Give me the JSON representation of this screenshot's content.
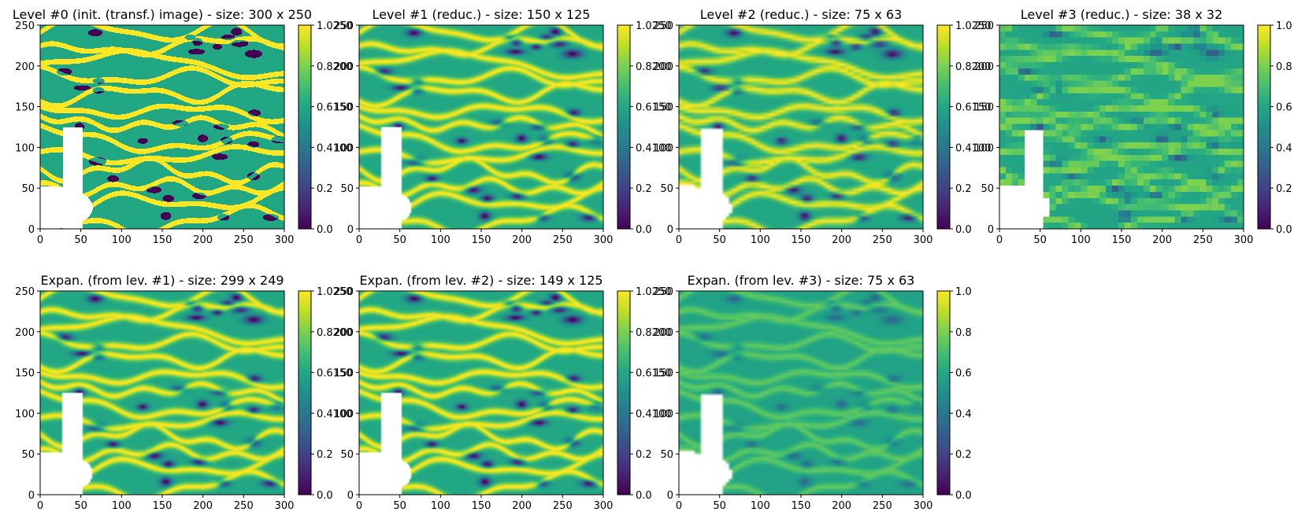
{
  "chart_data": [
    {
      "type": "heatmap",
      "title": "Level #0 (init. (transf.) image) - size: 300 x 250",
      "grid_size": [
        300,
        250
      ],
      "xlim": [
        0,
        300
      ],
      "ylim": [
        0,
        250
      ],
      "x_ticks": [
        "0",
        "50",
        "100",
        "150",
        "200",
        "250",
        "300"
      ],
      "y_ticks": [
        "0",
        "50",
        "100",
        "150",
        "200",
        "250"
      ],
      "colorbar": {
        "min": 0.0,
        "max": 1.025,
        "ticks": [
          "0.0",
          "0.2",
          "0.4100",
          "0.6150",
          "0.8200",
          "1.0250"
        ]
      },
      "smoothing": "sharp",
      "cell": 1
    },
    {
      "type": "heatmap",
      "title": "Level #1 (reduc.) - size: 150 x 125",
      "grid_size": [
        150,
        125
      ],
      "xlim": [
        0,
        300
      ],
      "ylim": [
        0,
        250
      ],
      "x_ticks": [
        "0",
        "50",
        "100",
        "150",
        "200",
        "250",
        "300"
      ],
      "y_ticks": [
        "0",
        "50",
        "100",
        "150",
        "200",
        "250"
      ],
      "colorbar": {
        "min": 0.0,
        "max": 1.025,
        "ticks": [
          "0.0",
          "0.2",
          "0.4100",
          "0.6150",
          "0.8200",
          "1.0250"
        ]
      },
      "smoothing": "soft",
      "cell": 2
    },
    {
      "type": "heatmap",
      "title": "Level #2 (reduc.) - size: 75 x 63",
      "grid_size": [
        75,
        63
      ],
      "xlim": [
        0,
        300
      ],
      "ylim": [
        0,
        250
      ],
      "x_ticks": [
        "0",
        "50",
        "100",
        "150",
        "200",
        "250",
        "300"
      ],
      "y_ticks": [
        "0",
        "50",
        "100",
        "150",
        "200",
        "250"
      ],
      "colorbar": {
        "min": 0.0,
        "max": 1.025,
        "ticks": [
          "0.0",
          "0.2",
          "0.4100",
          "0.6150",
          "0.8200",
          "1.0250"
        ]
      },
      "smoothing": "medium",
      "cell": 4
    },
    {
      "type": "heatmap",
      "title": "Level #3 (reduc.) - size: 38 x 32",
      "grid_size": [
        38,
        32
      ],
      "xlim": [
        0,
        300
      ],
      "ylim": [
        0,
        250
      ],
      "x_ticks": [
        "0",
        "50",
        "100",
        "150",
        "200",
        "250",
        "300"
      ],
      "y_ticks": [
        "0",
        "50",
        "100",
        "150",
        "200",
        "250"
      ],
      "colorbar": {
        "min": 0.0,
        "max": 1.0,
        "ticks": [
          "0.0",
          "0.2",
          "0.4",
          "0.6",
          "0.8",
          "1.0"
        ]
      },
      "smoothing": "blocky",
      "cell": 8
    },
    {
      "type": "heatmap",
      "title": "Expan. (from lev. #1) - size: 299 x 249",
      "grid_size": [
        299,
        249
      ],
      "xlim": [
        0,
        300
      ],
      "ylim": [
        0,
        250
      ],
      "x_ticks": [
        "0",
        "50",
        "100",
        "150",
        "200",
        "250",
        "300"
      ],
      "y_ticks": [
        "0",
        "50",
        "100",
        "150",
        "200",
        "250"
      ],
      "colorbar": {
        "min": 0.0,
        "max": 1.025,
        "ticks": [
          "0.0",
          "0.2",
          "0.4100",
          "0.6150",
          "0.8200",
          "1.0250"
        ]
      },
      "smoothing": "soft",
      "cell": 2
    },
    {
      "type": "heatmap",
      "title": "Expan. (from lev. #2) - size: 149 x 125",
      "grid_size": [
        149,
        125
      ],
      "xlim": [
        0,
        300
      ],
      "ylim": [
        0,
        250
      ],
      "x_ticks": [
        "0",
        "50",
        "100",
        "150",
        "200",
        "250",
        "300"
      ],
      "y_ticks": [
        "0",
        "50",
        "100",
        "150",
        "200",
        "250"
      ],
      "colorbar": {
        "min": 0.0,
        "max": 1.025,
        "ticks": [
          "0.0",
          "0.2",
          "0.4100",
          "0.6150",
          "0.8200",
          "1.0250"
        ]
      },
      "smoothing": "medium",
      "cell": 2
    },
    {
      "type": "heatmap",
      "title": "Expan. (from lev. #3) - size: 75 x 63",
      "grid_size": [
        75,
        63
      ],
      "xlim": [
        0,
        300
      ],
      "ylim": [
        0,
        250
      ],
      "x_ticks": [
        "0",
        "50",
        "100",
        "150",
        "200",
        "250",
        "300"
      ],
      "y_ticks": [
        "0",
        "50",
        "100",
        "150",
        "200",
        "250"
      ],
      "colorbar": {
        "min": 0.0,
        "max": 1.0,
        "ticks": [
          "0.0",
          "0.2",
          "0.4",
          "0.6",
          "0.8",
          "1.0"
        ]
      },
      "smoothing": "blurred",
      "cell": 4
    }
  ]
}
